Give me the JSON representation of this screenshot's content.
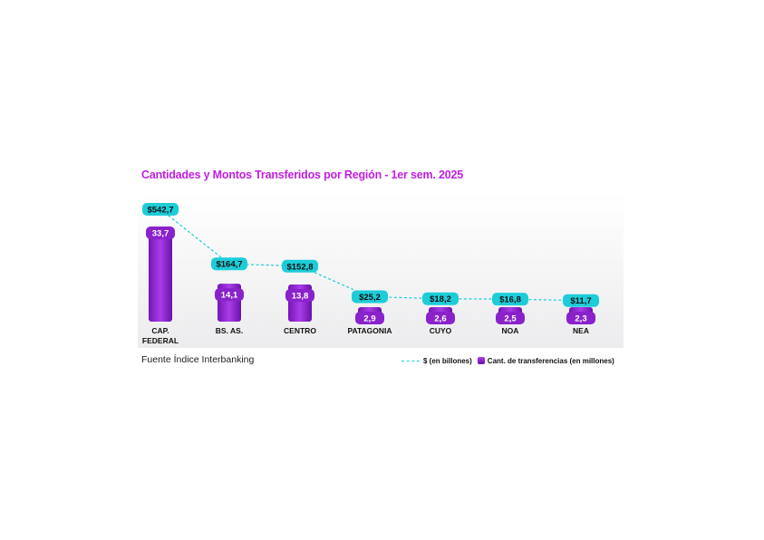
{
  "chart_data": {
    "type": "bar",
    "title": "Cantidades y Montos Transferidos por Región - 1er sem. 2025",
    "categories": [
      "CAP.\nFEDERAL",
      "BS. AS.",
      "CENTRO",
      "PATAGONIA",
      "CUYO",
      "NOA",
      "NEA"
    ],
    "series": [
      {
        "name": "$ (en billones)",
        "kind": "line",
        "values": [
          542.7,
          164.7,
          152.8,
          25.2,
          18.2,
          16.8,
          11.7
        ],
        "labels": [
          "$542,7",
          "$164,7",
          "$152,8",
          "$25,2",
          "$18,2",
          "$16,8",
          "$11,7"
        ],
        "color": "#1ccdd8"
      },
      {
        "name": "Cant. de transferencias (en millones)",
        "kind": "bar",
        "values": [
          33.7,
          14.1,
          13.8,
          2.9,
          2.6,
          2.5,
          2.3
        ],
        "labels": [
          "33,7",
          "14,1",
          "13,8",
          "2,9",
          "2,6",
          "2,5",
          "2,3"
        ],
        "color": "#8a22cc"
      }
    ],
    "grid": false,
    "legend_position": "bottom-right"
  },
  "source": "Fuente Índice Interbanking",
  "colors": {
    "title": "#c21ee0",
    "line": "#1ccdd8",
    "bar_top": "#a93ee8",
    "bar_bottom": "#6a12a8"
  }
}
